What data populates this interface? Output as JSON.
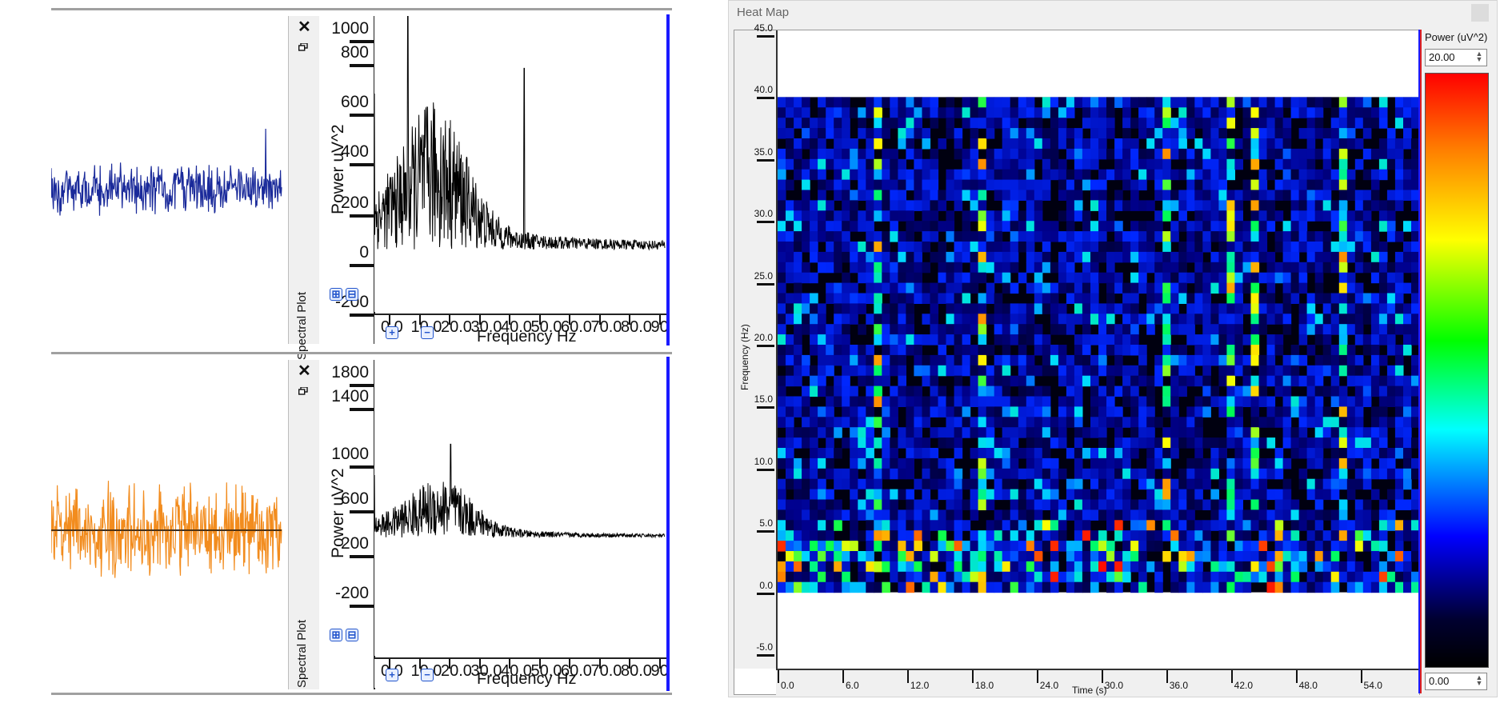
{
  "spectral_panels": [
    {
      "side_label": "Spectral Plot",
      "y_axis_label": "Power uV^2",
      "y_ticks": [
        "1000",
        "800",
        "600",
        "400",
        "200",
        "0",
        "-200"
      ],
      "x_axis_label": "Frequency Hz",
      "x_ticks": [
        "0.0",
        "10.0",
        "20.0",
        "30.0",
        "40.0",
        "50.0",
        "60.0",
        "70.0",
        "80.0",
        "90."
      ],
      "zoom_in": "⊞",
      "zoom_out": "⊟",
      "close": "✕",
      "trace_color": "#1a2a9a"
    },
    {
      "side_label": "Spectral Plot",
      "y_axis_label": "Power uV^2",
      "y_ticks": [
        "1800",
        "1400",
        "1000",
        "600",
        "200",
        "-200"
      ],
      "x_axis_label": "Frequency Hz",
      "x_ticks": [
        "0.0",
        "10.0",
        "20.0",
        "30.0",
        "40.0",
        "50.0",
        "60.0",
        "70.0",
        "80.0",
        "90."
      ],
      "zoom_in": "⊞",
      "zoom_out": "⊟",
      "close": "✕",
      "trace_color": "#f28c1e"
    }
  ],
  "heatmap": {
    "window_title": "Heat Map",
    "y_axis_label": "Frequency (Hz)",
    "x_axis_label": "Time (s)",
    "y_ticks": [
      "45.0",
      "40.0",
      "35.0",
      "30.0",
      "25.0",
      "20.0",
      "15.0",
      "10.0",
      "5.0",
      "0.0",
      "-5.0"
    ],
    "x_ticks": [
      "0.0",
      "6.0",
      "12.0",
      "18.0",
      "24.0",
      "30.0",
      "36.0",
      "42.0",
      "48.0",
      "54.0"
    ],
    "colorbar_title": "Power (uV^2)",
    "max_value": "20.00",
    "min_value": "0.00"
  },
  "chart_data": [
    {
      "type": "line",
      "title": "",
      "xlabel": "Frequency Hz",
      "ylabel": "Power uV^2",
      "xlim": [
        0,
        95
      ],
      "ylim": [
        -200,
        1000
      ],
      "peaks": [
        {
          "x": 11,
          "y": 1000
        },
        {
          "x": 49,
          "y": 700
        }
      ],
      "grid": false
    },
    {
      "type": "line",
      "title": "",
      "xlabel": "Frequency Hz",
      "ylabel": "Power uV^2",
      "xlim": [
        0,
        95
      ],
      "ylim": [
        -200,
        1800
      ],
      "peaks": [
        {
          "x": 25,
          "y": 600
        }
      ],
      "grid": false
    },
    {
      "type": "heatmap",
      "title": "",
      "xlabel": "Time (s)",
      "ylabel": "Frequency (Hz)",
      "xlim": [
        0,
        59
      ],
      "ylim": [
        -5,
        45
      ],
      "data_y_range": [
        0,
        40
      ],
      "colorbar_range": [
        0,
        20
      ]
    }
  ]
}
